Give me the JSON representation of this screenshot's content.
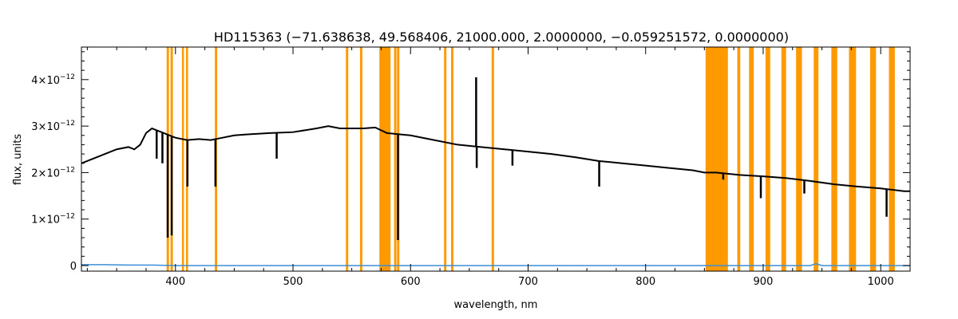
{
  "chart_data": {
    "type": "line",
    "title": "HD115363   (−71.638638, 49.568406, 21000.000, 2.0000000, −0.059251572, 0.0000000)",
    "xlabel": "wavelength, nm",
    "ylabel": "flux, units",
    "xlim": [
      320,
      1025
    ],
    "ylim": [
      -1.2e-13,
      4.7e-12
    ],
    "x_ticks": [
      400,
      500,
      600,
      700,
      800,
      900,
      1000
    ],
    "y_ticks": [
      {
        "value": 0,
        "mantissa": "0",
        "exp": ""
      },
      {
        "value": 1e-12,
        "mantissa": "1×10",
        "exp": "−12"
      },
      {
        "value": 2e-12,
        "mantissa": "2×10",
        "exp": "−12"
      },
      {
        "value": 3e-12,
        "mantissa": "3×10",
        "exp": "−12"
      },
      {
        "value": 4e-12,
        "mantissa": "4×10",
        "exp": "−12"
      }
    ],
    "grid": false,
    "colors": {
      "flux": "#000000",
      "error": "#3a8fd8",
      "masked": "#ff9900"
    },
    "masked_ranges": [
      [
        392.5,
        394.5
      ],
      [
        395.8,
        397.8
      ],
      [
        405.5,
        407
      ],
      [
        409,
        410.5
      ],
      [
        433.5,
        435.5
      ],
      [
        545,
        547
      ],
      [
        557,
        559
      ],
      [
        573.5,
        583
      ],
      [
        586,
        588
      ],
      [
        588.5,
        590.5
      ],
      [
        628.5,
        630.5
      ],
      [
        634.5,
        636.5
      ],
      [
        669,
        671
      ],
      [
        851,
        870
      ],
      [
        878,
        880.5
      ],
      [
        888,
        892
      ],
      [
        902,
        906
      ],
      [
        915.5,
        919.5
      ],
      [
        928,
        933
      ],
      [
        943,
        947
      ],
      [
        958,
        963
      ],
      [
        973,
        979
      ],
      [
        991,
        996
      ],
      [
        1007,
        1012
      ]
    ],
    "series": [
      {
        "x": [
          320,
          330,
          340,
          350,
          360,
          365,
          370,
          375,
          380,
          385,
          390,
          395,
          400,
          410,
          420,
          430,
          440,
          450,
          460,
          480,
          500,
          520,
          530,
          540,
          560,
          570,
          580,
          600,
          620,
          640,
          660,
          680,
          700,
          720,
          740,
          760,
          780,
          800,
          820,
          840,
          850,
          860,
          880,
          900,
          920,
          940,
          960,
          980,
          1000,
          1020,
          1025
        ],
        "y": [
          2.2e-12,
          2.3e-12,
          2.4e-12,
          2.5e-12,
          2.55e-12,
          2.5e-12,
          2.6e-12,
          2.85e-12,
          2.95e-12,
          2.9e-12,
          2.85e-12,
          2.8e-12,
          2.75e-12,
          2.7e-12,
          2.72e-12,
          2.7e-12,
          2.75e-12,
          2.8e-12,
          2.82e-12,
          2.85e-12,
          2.87e-12,
          2.95e-12,
          3e-12,
          2.95e-12,
          2.95e-12,
          2.97e-12,
          2.85e-12,
          2.8e-12,
          2.7e-12,
          2.6e-12,
          2.55e-12,
          2.5e-12,
          2.45e-12,
          2.4e-12,
          2.33e-12,
          2.25e-12,
          2.2e-12,
          2.15e-12,
          2.1e-12,
          2.05e-12,
          2e-12,
          2e-12,
          1.95e-12,
          1.92e-12,
          1.88e-12,
          1.82e-12,
          1.75e-12,
          1.7e-12,
          1.66e-12,
          1.6e-12,
          1.6e-12
        ]
      },
      {
        "x": [
          320,
          340,
          360,
          380,
          400,
          500,
          600,
          700,
          800,
          850,
          900,
          940,
          945,
          950,
          1000,
          1025
        ],
        "y": [
          2e-14,
          2e-14,
          1e-14,
          1e-14,
          0.0,
          0.0,
          0.0,
          0.0,
          0.0,
          0.0,
          0.0,
          0.0,
          4e-14,
          0.0,
          0.0,
          0.0
        ]
      }
    ],
    "absorption_lines": [
      {
        "x": 384,
        "y": 2.3e-12
      },
      {
        "x": 388.9,
        "y": 2.2e-12
      },
      {
        "x": 393.4,
        "y": 6e-13
      },
      {
        "x": 396.8,
        "y": 6.5e-13
      },
      {
        "x": 410.2,
        "y": 1.7e-12
      },
      {
        "x": 434,
        "y": 1.7e-12
      },
      {
        "x": 486.1,
        "y": 2.3e-12
      },
      {
        "x": 589.3,
        "y": 5.5e-13
      },
      {
        "x": 656.3,
        "y": 2.1e-12
      },
      {
        "x": 686.7,
        "y": 2.15e-12
      },
      {
        "x": 760.5,
        "y": 1.7e-12
      },
      {
        "x": 866,
        "y": 1.85e-12
      },
      {
        "x": 898,
        "y": 1.45e-12
      },
      {
        "x": 935,
        "y": 1.55e-12
      },
      {
        "x": 1005,
        "y": 1.05e-12
      }
    ],
    "emission_lines": [
      {
        "x": 655.8,
        "y": 4.05e-12
      }
    ]
  }
}
